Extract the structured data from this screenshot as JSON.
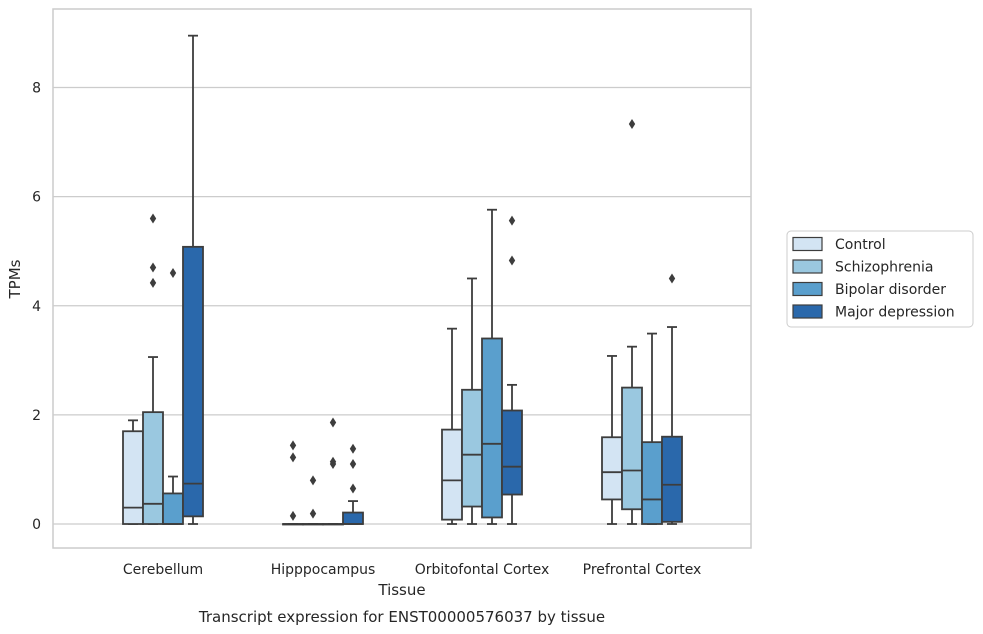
{
  "chart_data": {
    "type": "box",
    "caption": "Transcript expression for ENST00000576037 by tissue",
    "xlabel": "Tissue",
    "ylabel": "TPMs",
    "ylim": [
      -0.4,
      9.6
    ],
    "yticks": [
      0,
      2,
      4,
      6,
      8
    ],
    "ytick_labels": [
      "0",
      "2",
      "4",
      "6",
      "8"
    ],
    "grid": "horizontal",
    "legend_position": "right",
    "categories": [
      "Cerebellum",
      "Hipppocampus",
      "Orbitofontal Cortex",
      "Prefrontal Cortex"
    ],
    "series": [
      {
        "name": "Control",
        "color": "#d3e4f3",
        "boxes": [
          {
            "category": "Cerebellum",
            "whislo": 0,
            "q1": 0,
            "med": 0.3,
            "q3": 1.7,
            "whishi": 1.9,
            "fliers": []
          },
          {
            "category": "Hipppocampus",
            "whislo": 0,
            "q1": 0,
            "med": 0,
            "q3": 0,
            "whishi": 0,
            "fliers": [
              0.15,
              1.22,
              1.44
            ]
          },
          {
            "category": "Orbitofontal Cortex",
            "whislo": 0,
            "q1": 0.08,
            "med": 0.8,
            "q3": 1.73,
            "whishi": 3.58,
            "fliers": []
          },
          {
            "category": "Prefrontal Cortex",
            "whislo": 0,
            "q1": 0.45,
            "med": 0.95,
            "q3": 1.59,
            "whishi": 3.08,
            "fliers": []
          }
        ]
      },
      {
        "name": "Schizophrenia",
        "color": "#9ac8e0",
        "boxes": [
          {
            "category": "Cerebellum",
            "whislo": 0,
            "q1": 0,
            "med": 0.37,
            "q3": 2.05,
            "whishi": 3.06,
            "fliers": [
              4.42,
              4.7,
              5.6
            ]
          },
          {
            "category": "Hipppocampus",
            "whislo": 0,
            "q1": 0,
            "med": 0,
            "q3": 0,
            "whishi": 0,
            "fliers": [
              0.19,
              0.8
            ]
          },
          {
            "category": "Orbitofontal Cortex",
            "whislo": 0,
            "q1": 0.32,
            "med": 1.27,
            "q3": 2.46,
            "whishi": 4.5,
            "fliers": []
          },
          {
            "category": "Prefrontal Cortex",
            "whislo": 0,
            "q1": 0.27,
            "med": 0.98,
            "q3": 2.5,
            "whishi": 3.25,
            "fliers": [
              7.33
            ]
          }
        ]
      },
      {
        "name": "Bipolar disorder",
        "color": "#5a9fcd",
        "boxes": [
          {
            "category": "Cerebellum",
            "whislo": 0,
            "q1": 0,
            "med": 0,
            "q3": 0.56,
            "whishi": 0.87,
            "fliers": [
              4.6
            ]
          },
          {
            "category": "Hipppocampus",
            "whislo": 0,
            "q1": 0,
            "med": 0,
            "q3": 0,
            "whishi": 0,
            "fliers": [
              1.1,
              1.14,
              1.86
            ]
          },
          {
            "category": "Orbitofontal Cortex",
            "whislo": 0,
            "q1": 0.12,
            "med": 1.47,
            "q3": 3.4,
            "whishi": 5.76,
            "fliers": []
          },
          {
            "category": "Prefrontal Cortex",
            "whislo": 0,
            "q1": 0,
            "med": 0.45,
            "q3": 1.5,
            "whishi": 3.49,
            "fliers": []
          }
        ]
      },
      {
        "name": "Major depression",
        "color": "#2a68ab",
        "boxes": [
          {
            "category": "Cerebellum",
            "whislo": 0,
            "q1": 0.14,
            "med": 0.74,
            "q3": 5.08,
            "whishi": 8.95,
            "fliers": []
          },
          {
            "category": "Hipppocampus",
            "whislo": 0,
            "q1": 0,
            "med": 0,
            "q3": 0.21,
            "whishi": 0.42,
            "fliers": [
              0.65,
              1.1,
              1.38
            ]
          },
          {
            "category": "Orbitofontal Cortex",
            "whislo": 0,
            "q1": 0.54,
            "med": 1.05,
            "q3": 2.08,
            "whishi": 2.55,
            "fliers": [
              4.83,
              5.56
            ]
          },
          {
            "category": "Prefrontal Cortex",
            "whislo": 0,
            "q1": 0.04,
            "med": 0.72,
            "q3": 1.6,
            "whishi": 3.61,
            "fliers": [
              4.5
            ]
          }
        ]
      }
    ]
  }
}
